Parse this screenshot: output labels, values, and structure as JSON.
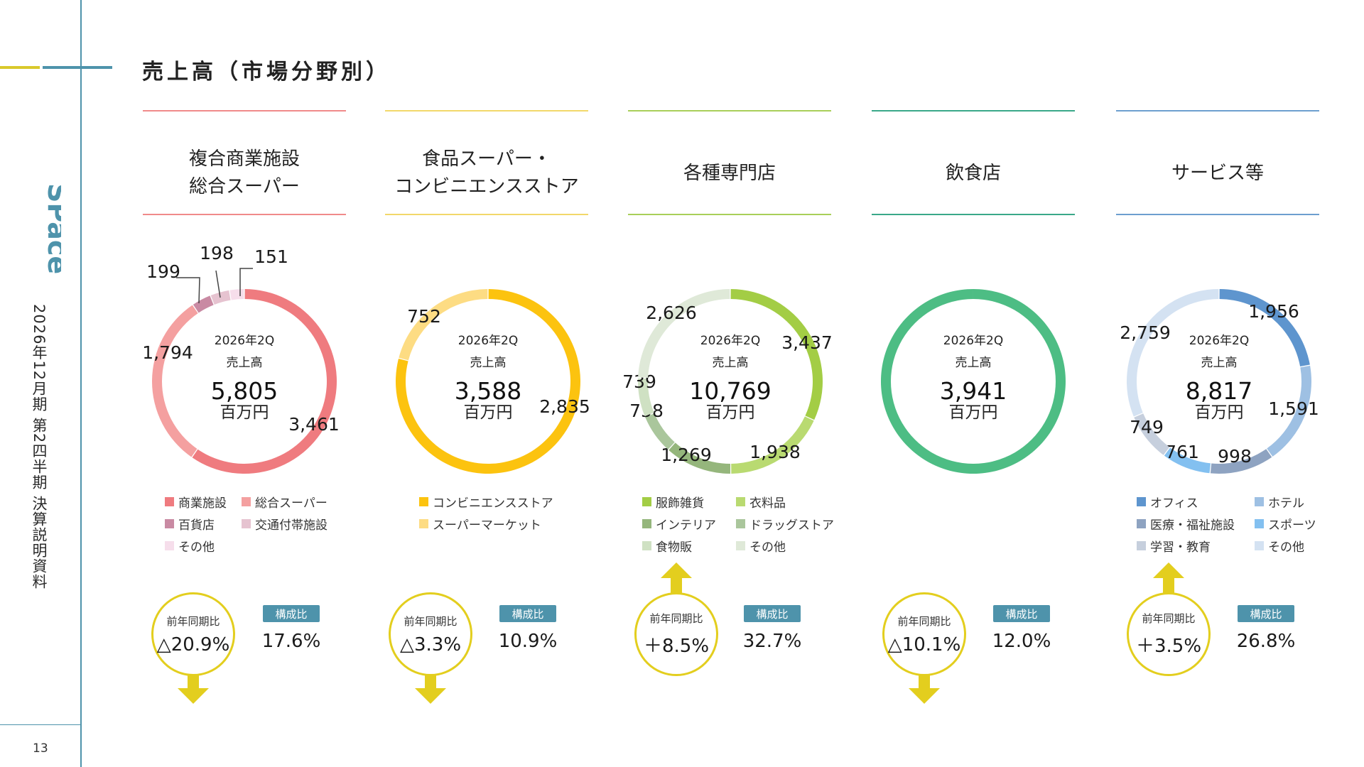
{
  "sidebar": {
    "logo_text": "SPace",
    "doc_title": "2026年12月期 第2四半期 決算説明資料",
    "page_number": "13",
    "accent_colors": {
      "yellow": "#d9c92c",
      "blue": "#4e93ab"
    }
  },
  "page_title": "売上高（市場分野別）",
  "common": {
    "center_period": "2026年2Q",
    "center_label": "売上高",
    "center_unit": "百万円",
    "yoy_label": "前年同期比",
    "comp_label": "構成比",
    "arrow_color": "#e3ce1e"
  },
  "categories": [
    {
      "title_lines": [
        "複合商業施設",
        "総合スーパー"
      ],
      "rule_color": "#f08a8a",
      "total": "5,805",
      "yoy": "△20.9%",
      "yoy_direction": "down",
      "composition": "17.6%"
    },
    {
      "title_lines": [
        "食品スーパー・",
        "コンビニエンスストア"
      ],
      "rule_color": "#f2d86a",
      "total": "3,588",
      "yoy": "△3.3%",
      "yoy_direction": "down",
      "composition": "10.9%"
    },
    {
      "title_lines": [
        "各種専門店"
      ],
      "rule_color": "#a9cf59",
      "total": "10,769",
      "yoy": "＋8.5%",
      "yoy_direction": "up",
      "composition": "32.7%"
    },
    {
      "title_lines": [
        "飲食店"
      ],
      "rule_color": "#3aa889",
      "total": "3,941",
      "yoy": "△10.1%",
      "yoy_direction": "down",
      "composition": "12.0%"
    },
    {
      "title_lines": [
        "サービス等"
      ],
      "rule_color": "#6d9fcf",
      "total": "8,817",
      "yoy": "＋3.5%",
      "yoy_direction": "up",
      "composition": "26.8%"
    }
  ],
  "chart_data": [
    {
      "type": "pie",
      "title": "複合商業施設・総合スーパー",
      "unit": "百万円",
      "center_total": 5805,
      "legend_columns": 2,
      "slices": [
        {
          "name": "商業施設",
          "value": 3461,
          "label": "3,461",
          "color": "#ef7b7f"
        },
        {
          "name": "総合スーパー",
          "value": 1794,
          "label": "1,794",
          "color": "#f4a0a0"
        },
        {
          "name": "百貨店",
          "value": 199,
          "label": "199",
          "color": "#c98aa3"
        },
        {
          "name": "交通付帯施設",
          "value": 198,
          "label": "198",
          "color": "#e6c3d0"
        },
        {
          "name": "その他",
          "value": 151,
          "label": "151",
          "color": "#f6deeb"
        }
      ]
    },
    {
      "type": "pie",
      "title": "食品スーパー・コンビニエンスストア",
      "unit": "百万円",
      "center_total": 3588,
      "legend_columns": 1,
      "slices": [
        {
          "name": "コンビニエンスストア",
          "value": 2835,
          "label": "2,835",
          "color": "#fcc30f"
        },
        {
          "name": "スーパーマーケット",
          "value": 752,
          "label": "752",
          "color": "#fddc83"
        }
      ]
    },
    {
      "type": "pie",
      "title": "各種専門店",
      "unit": "百万円",
      "center_total": 10769,
      "legend_columns": 2,
      "slices": [
        {
          "name": "服飾雑貨",
          "value": 3437,
          "label": "3,437",
          "color": "#a3cd45"
        },
        {
          "name": "衣料品",
          "value": 1938,
          "label": "1,938",
          "color": "#b9da71"
        },
        {
          "name": "インテリア",
          "value": 1269,
          "label": "1,269",
          "color": "#95b67c"
        },
        {
          "name": "ドラッグストア",
          "value": 758,
          "label": "758",
          "color": "#aac69c"
        },
        {
          "name": "食物販",
          "value": 739,
          "label": "739",
          "color": "#cfe1c3"
        },
        {
          "name": "その他",
          "value": 2626,
          "label": "2,626",
          "color": "#dfe9d8"
        }
      ]
    },
    {
      "type": "pie",
      "title": "飲食店",
      "unit": "百万円",
      "center_total": 3941,
      "legend_columns": 1,
      "slices": [
        {
          "name": "飲食店",
          "value": 3941,
          "label": "",
          "color": "#4dbd84"
        }
      ]
    },
    {
      "type": "pie",
      "title": "サービス等",
      "unit": "百万円",
      "center_total": 8817,
      "legend_columns": 2,
      "slices": [
        {
          "name": "オフィス",
          "value": 1956,
          "label": "1,956",
          "color": "#5e95ce"
        },
        {
          "name": "ホテル",
          "value": 1591,
          "label": "1,591",
          "color": "#9ec0e3"
        },
        {
          "name": "医療・福祉施設",
          "value": 998,
          "label": "998",
          "color": "#8ea3c1"
        },
        {
          "name": "スポーツ",
          "value": 761,
          "label": "761",
          "color": "#83c0f0"
        },
        {
          "name": "学習・教育",
          "value": 749,
          "label": "749",
          "color": "#c6cfdd"
        },
        {
          "name": "その他",
          "value": 2759,
          "label": "2,759",
          "color": "#d4e2f2"
        }
      ]
    }
  ]
}
